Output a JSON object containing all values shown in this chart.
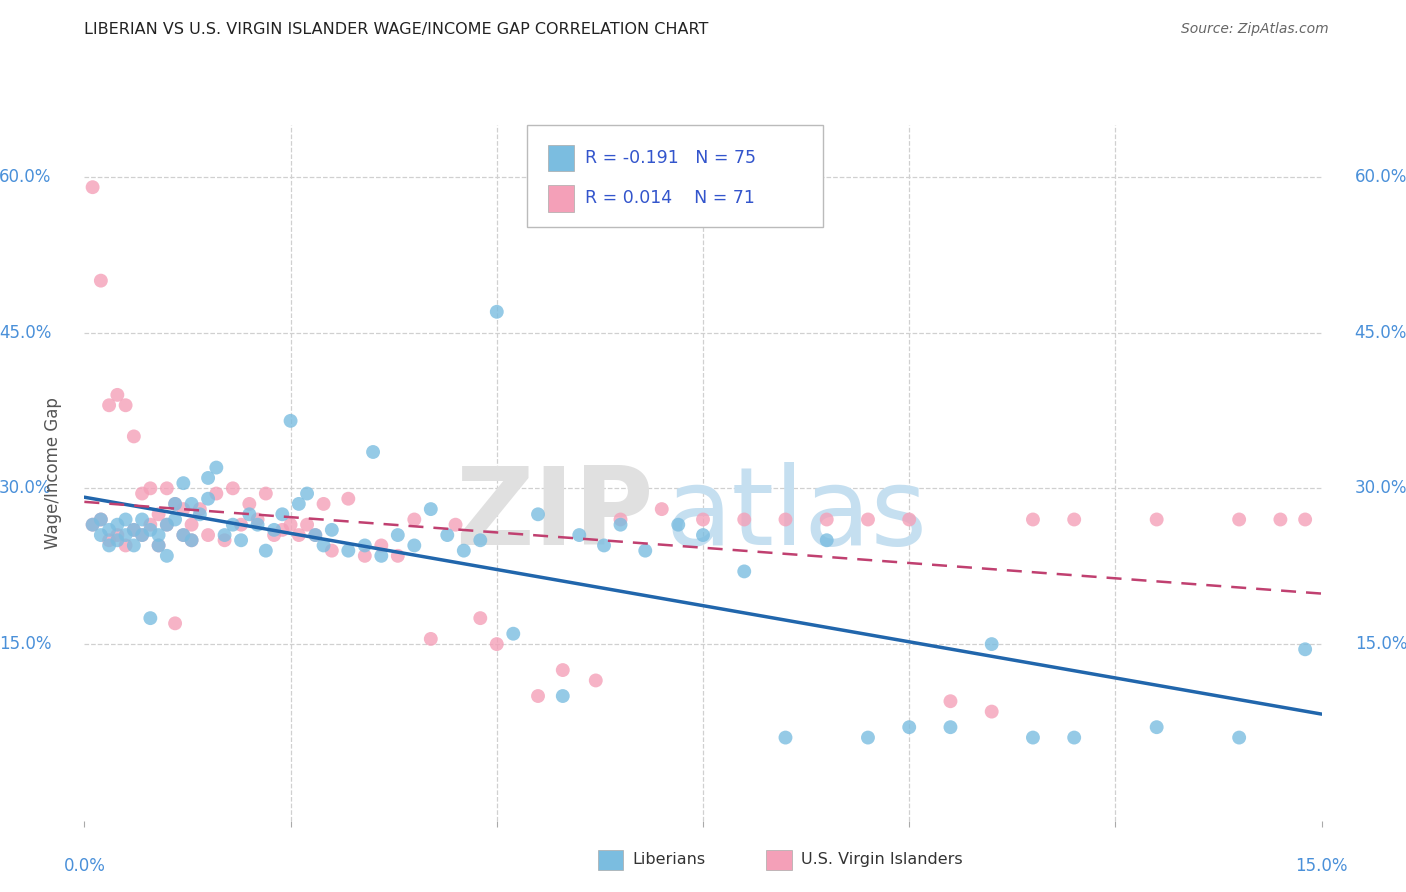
{
  "title": "LIBERIAN VS U.S. VIRGIN ISLANDER WAGE/INCOME GAP CORRELATION CHART",
  "source": "Source: ZipAtlas.com",
  "ylabel": "Wage/Income Gap",
  "xlim": [
    0.0,
    0.15
  ],
  "ylim": [
    -0.02,
    0.65
  ],
  "ytick_values": [
    0.15,
    0.3,
    0.45,
    0.6
  ],
  "grid_color": "#d0d0d0",
  "background_color": "#ffffff",
  "blue_color": "#7bbde0",
  "pink_color": "#f4a0b8",
  "blue_line_color": "#2166ac",
  "pink_line_color": "#c04070",
  "blue_R": -0.191,
  "blue_N": 75,
  "pink_R": 0.014,
  "pink_N": 71,
  "legend_label_blue": "Liberians",
  "legend_label_pink": "U.S. Virgin Islanders",
  "blue_x": [
    0.001,
    0.002,
    0.002,
    0.003,
    0.003,
    0.004,
    0.004,
    0.005,
    0.005,
    0.006,
    0.006,
    0.007,
    0.007,
    0.008,
    0.008,
    0.009,
    0.009,
    0.01,
    0.01,
    0.011,
    0.011,
    0.012,
    0.012,
    0.013,
    0.013,
    0.014,
    0.015,
    0.015,
    0.016,
    0.017,
    0.018,
    0.019,
    0.02,
    0.021,
    0.022,
    0.023,
    0.024,
    0.025,
    0.026,
    0.027,
    0.028,
    0.029,
    0.03,
    0.032,
    0.034,
    0.035,
    0.036,
    0.038,
    0.04,
    0.042,
    0.044,
    0.046,
    0.048,
    0.05,
    0.052,
    0.055,
    0.058,
    0.06,
    0.063,
    0.065,
    0.068,
    0.072,
    0.075,
    0.08,
    0.085,
    0.09,
    0.095,
    0.1,
    0.105,
    0.11,
    0.115,
    0.12,
    0.13,
    0.14,
    0.148
  ],
  "blue_y": [
    0.265,
    0.27,
    0.255,
    0.26,
    0.245,
    0.265,
    0.25,
    0.27,
    0.255,
    0.26,
    0.245,
    0.27,
    0.255,
    0.26,
    0.175,
    0.255,
    0.245,
    0.265,
    0.235,
    0.27,
    0.285,
    0.255,
    0.305,
    0.25,
    0.285,
    0.275,
    0.29,
    0.31,
    0.32,
    0.255,
    0.265,
    0.25,
    0.275,
    0.265,
    0.24,
    0.26,
    0.275,
    0.365,
    0.285,
    0.295,
    0.255,
    0.245,
    0.26,
    0.24,
    0.245,
    0.335,
    0.235,
    0.255,
    0.245,
    0.28,
    0.255,
    0.24,
    0.25,
    0.47,
    0.16,
    0.275,
    0.1,
    0.255,
    0.245,
    0.265,
    0.24,
    0.265,
    0.255,
    0.22,
    0.06,
    0.25,
    0.06,
    0.07,
    0.07,
    0.15,
    0.06,
    0.06,
    0.07,
    0.06,
    0.145
  ],
  "pink_x": [
    0.001,
    0.001,
    0.002,
    0.002,
    0.003,
    0.003,
    0.004,
    0.004,
    0.005,
    0.005,
    0.006,
    0.006,
    0.007,
    0.007,
    0.008,
    0.008,
    0.009,
    0.009,
    0.01,
    0.01,
    0.011,
    0.011,
    0.012,
    0.012,
    0.013,
    0.013,
    0.014,
    0.015,
    0.016,
    0.017,
    0.018,
    0.019,
    0.02,
    0.021,
    0.022,
    0.023,
    0.024,
    0.025,
    0.026,
    0.027,
    0.028,
    0.029,
    0.03,
    0.032,
    0.034,
    0.036,
    0.038,
    0.04,
    0.042,
    0.045,
    0.048,
    0.05,
    0.055,
    0.058,
    0.062,
    0.065,
    0.07,
    0.075,
    0.08,
    0.085,
    0.09,
    0.095,
    0.1,
    0.105,
    0.11,
    0.115,
    0.12,
    0.13,
    0.14,
    0.145,
    0.148
  ],
  "pink_y": [
    0.265,
    0.59,
    0.27,
    0.5,
    0.25,
    0.38,
    0.255,
    0.39,
    0.245,
    0.38,
    0.26,
    0.35,
    0.255,
    0.295,
    0.265,
    0.3,
    0.245,
    0.275,
    0.265,
    0.3,
    0.17,
    0.285,
    0.255,
    0.28,
    0.25,
    0.265,
    0.28,
    0.255,
    0.295,
    0.25,
    0.3,
    0.265,
    0.285,
    0.27,
    0.295,
    0.255,
    0.26,
    0.265,
    0.255,
    0.265,
    0.255,
    0.285,
    0.24,
    0.29,
    0.235,
    0.245,
    0.235,
    0.27,
    0.155,
    0.265,
    0.175,
    0.15,
    0.1,
    0.125,
    0.115,
    0.27,
    0.28,
    0.27,
    0.27,
    0.27,
    0.27,
    0.27,
    0.27,
    0.095,
    0.085,
    0.27,
    0.27,
    0.27,
    0.27,
    0.27,
    0.27
  ]
}
